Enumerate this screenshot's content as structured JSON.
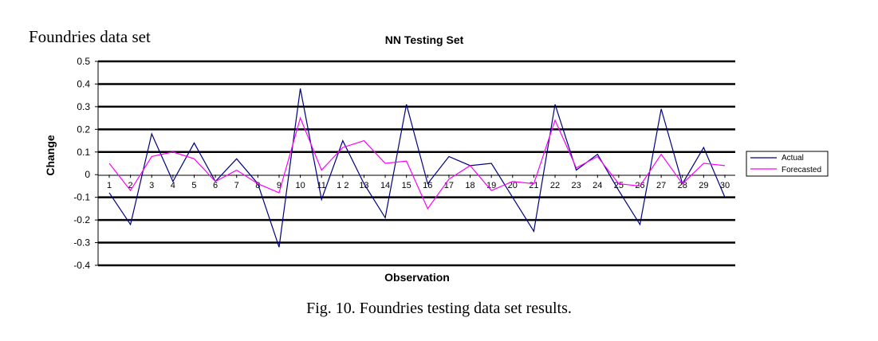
{
  "page": {
    "heading": "Foundries data set",
    "caption": "Fig. 10.  Foundries testing data set results."
  },
  "chart_data": {
    "type": "line",
    "title": "NN Testing Set",
    "xlabel": "Observation",
    "ylabel": "Change",
    "ylim": [
      -0.4,
      0.5
    ],
    "yticks": [
      0.5,
      0.4,
      0.3,
      0.2,
      0.1,
      0,
      -0.1,
      -0.2,
      -0.3,
      -0.4
    ],
    "ytick_labels": [
      "0.5",
      "0.4",
      "0.3",
      "0.2",
      "0.1",
      "0",
      "-0.1",
      "-0.2",
      "-0.3",
      "-0.4"
    ],
    "x": [
      1,
      2,
      3,
      4,
      5,
      6,
      7,
      8,
      9,
      10,
      11,
      12,
      13,
      14,
      15,
      16,
      17,
      18,
      19,
      20,
      21,
      22,
      23,
      24,
      25,
      26,
      27,
      28,
      29,
      30
    ],
    "xtick_labels": [
      "1",
      "2",
      "3",
      "4",
      "5",
      "6",
      "7",
      "8",
      "9",
      "10",
      "11",
      "1 2",
      "13",
      "14",
      "15",
      "16",
      "17",
      "18",
      "19",
      "20",
      "21",
      "22",
      "23",
      "24",
      "25",
      "26",
      "27",
      "28",
      "29",
      "30"
    ],
    "grid": true,
    "legend_position": "right",
    "series": [
      {
        "name": "Actual",
        "color": "#000080",
        "values": [
          -0.08,
          -0.22,
          0.18,
          -0.03,
          0.14,
          -0.03,
          0.07,
          -0.04,
          -0.32,
          0.38,
          -0.11,
          0.15,
          -0.04,
          -0.19,
          0.31,
          -0.04,
          0.08,
          0.04,
          0.05,
          -0.1,
          -0.25,
          0.31,
          0.02,
          0.09,
          -0.07,
          -0.22,
          0.29,
          -0.04,
          0.12,
          -0.1
        ]
      },
      {
        "name": "Forecasted",
        "color": "#ff00ff",
        "values": [
          0.05,
          -0.07,
          0.08,
          0.1,
          0.07,
          -0.03,
          0.02,
          -0.04,
          -0.08,
          0.25,
          0.02,
          0.12,
          0.15,
          0.05,
          0.06,
          -0.15,
          -0.02,
          0.04,
          -0.07,
          -0.03,
          -0.04,
          0.24,
          0.03,
          0.08,
          -0.04,
          -0.05,
          0.09,
          -0.04,
          0.05,
          0.04
        ]
      }
    ]
  }
}
